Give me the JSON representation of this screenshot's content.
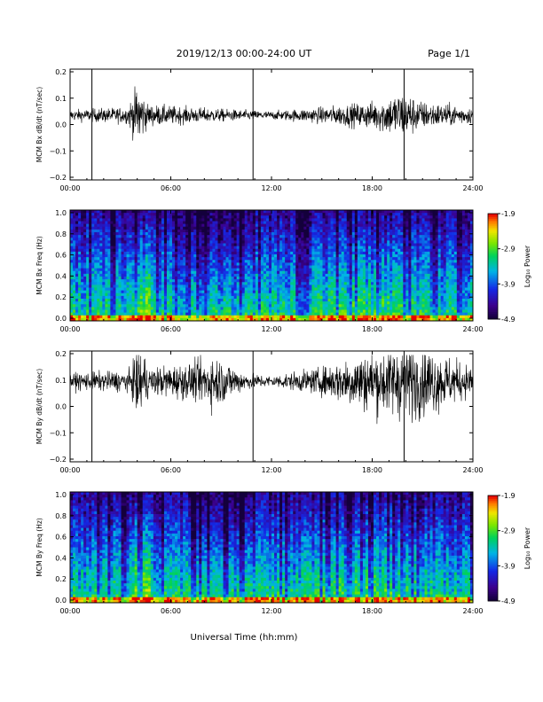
{
  "header": {
    "title": "2019/12/13  00:00-24:00 UT",
    "page": "Page 1/1"
  },
  "xlabel": "Universal Time (hh:mm)",
  "colorbar": {
    "label": "Log₁₀ Power",
    "ticks": [
      "-1.9",
      "-2.9",
      "-3.9",
      "-4.9"
    ]
  },
  "chart_data": [
    {
      "type": "line",
      "ylabel": "MCM Bx dB/dt (nT/sec)",
      "x_ticks": [
        "00:00",
        "06:00",
        "12:00",
        "18:00",
        "24:00"
      ],
      "y_ticks": [
        "0.2",
        "0.1",
        "0.0",
        "−0.1",
        "−0.2"
      ],
      "xlim_hours": [
        0,
        24
      ],
      "ylim": [
        -0.2,
        0.2
      ],
      "baseline": 0.035,
      "spikes_hours": [
        1.3,
        10.9,
        19.9
      ],
      "envelope": [
        {
          "t": 0,
          "amp": 0.02
        },
        {
          "t": 3.4,
          "amp": 0.03
        },
        {
          "t": 4.1,
          "amp": 0.12
        },
        {
          "t": 4.6,
          "amp": 0.04
        },
        {
          "t": 7,
          "amp": 0.03
        },
        {
          "t": 10,
          "amp": 0.02
        },
        {
          "t": 12,
          "amp": 0.015
        },
        {
          "t": 15,
          "amp": 0.03
        },
        {
          "t": 18,
          "amp": 0.05
        },
        {
          "t": 19.8,
          "amp": 0.09
        },
        {
          "t": 21,
          "amp": 0.05
        },
        {
          "t": 24,
          "amp": 0.03
        }
      ]
    },
    {
      "type": "heatmap",
      "ylabel": "MCM Bx Freq (Hz)",
      "x_ticks": [
        "00:00",
        "06:00",
        "12:00",
        "18:00",
        "24:00"
      ],
      "y_ticks": [
        "1.0",
        "0.8",
        "0.6",
        "0.4",
        "0.2",
        "0.0"
      ],
      "xlim_hours": [
        0,
        24
      ],
      "ylim": [
        0,
        1.0
      ],
      "zlim": [
        -4.9,
        -1.9
      ],
      "colorscale": "rainbow"
    },
    {
      "type": "line",
      "ylabel": "MCM By dB/dt (nT/sec)",
      "x_ticks": [
        "00:00",
        "06:00",
        "12:00",
        "18:00",
        "24:00"
      ],
      "y_ticks": [
        "0.2",
        "0.1",
        "0.0",
        "−0.1",
        "−0.2"
      ],
      "xlim_hours": [
        0,
        24
      ],
      "ylim": [
        -0.2,
        0.2
      ],
      "baseline": 0.095,
      "spikes_hours": [
        1.3,
        10.9,
        19.9
      ],
      "envelope": [
        {
          "t": 0,
          "amp": 0.03
        },
        {
          "t": 3.6,
          "amp": 0.04
        },
        {
          "t": 4.1,
          "amp": 0.16
        },
        {
          "t": 4.7,
          "amp": 0.05
        },
        {
          "t": 7.5,
          "amp": 0.07
        },
        {
          "t": 8.5,
          "amp": 0.1
        },
        {
          "t": 10.5,
          "amp": 0.03
        },
        {
          "t": 12,
          "amp": 0.02
        },
        {
          "t": 15,
          "amp": 0.05
        },
        {
          "t": 17,
          "amp": 0.1
        },
        {
          "t": 20,
          "amp": 0.14
        },
        {
          "t": 21.5,
          "amp": 0.12
        },
        {
          "t": 24,
          "amp": 0.05
        }
      ]
    },
    {
      "type": "heatmap",
      "ylabel": "MCM By Freq (Hz)",
      "x_ticks": [
        "00:00",
        "06:00",
        "12:00",
        "18:00",
        "24:00"
      ],
      "y_ticks": [
        "1.0",
        "0.8",
        "0.6",
        "0.4",
        "0.2",
        "0.0"
      ],
      "xlim_hours": [
        0,
        24
      ],
      "ylim": [
        0,
        1.0
      ],
      "zlim": [
        -4.9,
        -1.9
      ],
      "colorscale": "rainbow"
    }
  ]
}
